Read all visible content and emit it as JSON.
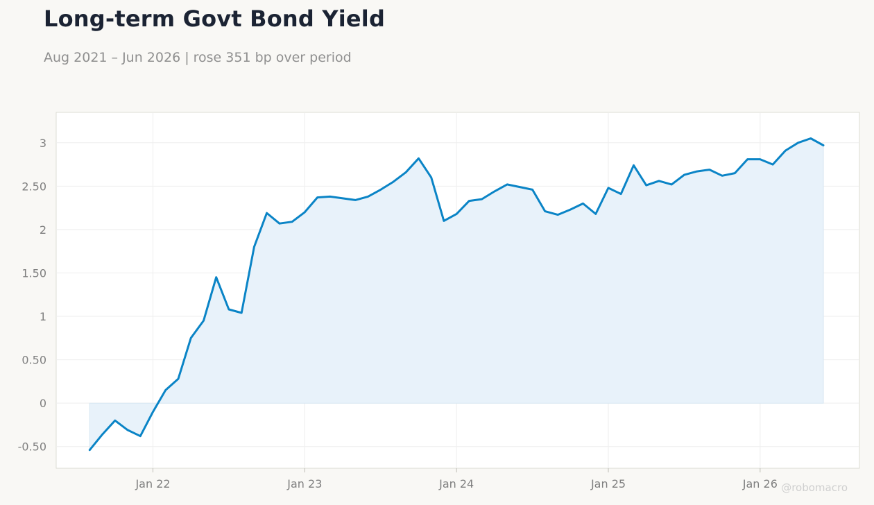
{
  "header": {
    "title": "Long-term Govt Bond Yield",
    "subtitle": "Aug 2021 – Jun 2026 | rose 351 bp over period"
  },
  "watermark": "@robomacro",
  "colors": {
    "background": "#f9f8f5",
    "plot_background": "#ffffff",
    "line": "#0a84c6",
    "area_fill": "#e8f2fa",
    "grid": "#eeeeee",
    "frame": "#dcdcd4"
  },
  "chart_data": {
    "type": "area",
    "title": "Long-term Govt Bond Yield",
    "subtitle": "Aug 2021 – Jun 2026 | rose 351 bp over period",
    "xlabel": "",
    "ylabel": "",
    "grid": true,
    "legend": "none",
    "xlim": [
      "2021-08",
      "2026-06"
    ],
    "ylim": [
      -0.75,
      3.35
    ],
    "x_ticks": [
      {
        "date": "2022-01",
        "label": "Jan 22"
      },
      {
        "date": "2023-01",
        "label": "Jan 23"
      },
      {
        "date": "2024-01",
        "label": "Jan 24"
      },
      {
        "date": "2025-01",
        "label": "Jan 25"
      },
      {
        "date": "2026-01",
        "label": "Jan 26"
      }
    ],
    "y_ticks": [
      {
        "value": -0.5,
        "label": "-0.50"
      },
      {
        "value": 0,
        "label": "0"
      },
      {
        "value": 0.5,
        "label": "0.50"
      },
      {
        "value": 1,
        "label": "1"
      },
      {
        "value": 1.5,
        "label": "1.50"
      },
      {
        "value": 2,
        "label": "2"
      },
      {
        "value": 2.5,
        "label": "2.50"
      },
      {
        "value": 3,
        "label": "3"
      }
    ],
    "x": [
      "2021-08",
      "2021-09",
      "2021-10",
      "2021-11",
      "2021-12",
      "2022-01",
      "2022-02",
      "2022-03",
      "2022-04",
      "2022-05",
      "2022-06",
      "2022-07",
      "2022-08",
      "2022-09",
      "2022-10",
      "2022-11",
      "2022-12",
      "2023-01",
      "2023-02",
      "2023-03",
      "2023-04",
      "2023-05",
      "2023-06",
      "2023-07",
      "2023-08",
      "2023-09",
      "2023-10",
      "2023-11",
      "2023-12",
      "2024-01",
      "2024-02",
      "2024-03",
      "2024-04",
      "2024-05",
      "2024-06",
      "2024-07",
      "2024-08",
      "2024-09",
      "2024-10",
      "2024-11",
      "2024-12",
      "2025-01",
      "2025-02",
      "2025-03",
      "2025-04",
      "2025-05",
      "2025-06",
      "2025-07",
      "2025-08",
      "2025-09",
      "2025-10",
      "2025-11",
      "2025-12",
      "2026-01",
      "2026-02",
      "2026-03",
      "2026-04",
      "2026-05",
      "2026-06"
    ],
    "series": [
      {
        "values": [
          -0.54,
          -0.36,
          -0.2,
          -0.31,
          -0.38,
          -0.1,
          0.15,
          0.28,
          0.75,
          0.95,
          1.45,
          1.08,
          1.04,
          1.8,
          2.19,
          2.07,
          2.09,
          2.2,
          2.37,
          2.38,
          2.36,
          2.34,
          2.38,
          2.46,
          2.55,
          2.66,
          2.82,
          2.6,
          2.1,
          2.18,
          2.33,
          2.35,
          2.44,
          2.52,
          2.49,
          2.46,
          2.21,
          2.17,
          2.23,
          2.3,
          2.18,
          2.48,
          2.41,
          2.74,
          2.51,
          2.56,
          2.52,
          2.63,
          2.67,
          2.69,
          2.62,
          2.65,
          2.81,
          2.81,
          2.75,
          2.91,
          3.0,
          3.05,
          2.97
        ]
      }
    ]
  }
}
